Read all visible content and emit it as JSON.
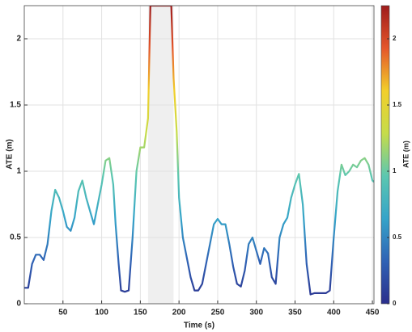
{
  "chart_data": {
    "type": "line",
    "xlabel": "Time (s)",
    "ylabel": "ATE (m)",
    "colorbar_label": "ATE (m)",
    "x": [
      0,
      5,
      10,
      15,
      20,
      25,
      30,
      35,
      40,
      45,
      50,
      55,
      60,
      65,
      70,
      75,
      80,
      85,
      90,
      95,
      100,
      105,
      110,
      115,
      118,
      122,
      125,
      130,
      135,
      140,
      145,
      150,
      155,
      160,
      163,
      190,
      193,
      197,
      200,
      205,
      210,
      215,
      220,
      225,
      230,
      235,
      240,
      245,
      250,
      255,
      260,
      265,
      270,
      275,
      280,
      285,
      290,
      295,
      300,
      305,
      310,
      315,
      320,
      325,
      330,
      335,
      340,
      345,
      350,
      355,
      360,
      365,
      370,
      375,
      380,
      385,
      390,
      395,
      400,
      405,
      410,
      415,
      420,
      425,
      430,
      435,
      440,
      445,
      450,
      452
    ],
    "series": [
      {
        "values": [
          0.12,
          0.12,
          0.3,
          0.37,
          0.37,
          0.33,
          0.45,
          0.7,
          0.86,
          0.8,
          0.7,
          0.58,
          0.55,
          0.65,
          0.85,
          0.93,
          0.8,
          0.7,
          0.6,
          0.75,
          0.9,
          1.08,
          1.1,
          0.9,
          0.6,
          0.3,
          0.1,
          0.09,
          0.1,
          0.5,
          1.0,
          1.18,
          1.18,
          1.4,
          2.25,
          2.25,
          1.7,
          1.3,
          0.8,
          0.5,
          0.35,
          0.2,
          0.1,
          0.1,
          0.15,
          0.3,
          0.45,
          0.6,
          0.64,
          0.6,
          0.6,
          0.45,
          0.28,
          0.15,
          0.13,
          0.25,
          0.45,
          0.5,
          0.4,
          0.3,
          0.42,
          0.38,
          0.2,
          0.15,
          0.5,
          0.6,
          0.65,
          0.8,
          0.9,
          0.98,
          0.75,
          0.3,
          0.07,
          0.08,
          0.08,
          0.08,
          0.08,
          0.1,
          0.5,
          0.85,
          1.05,
          0.97,
          1.0,
          1.05,
          1.03,
          1.08,
          1.1,
          1.05,
          0.93,
          0.92
        ]
      }
    ],
    "shaded_region": [
      160,
      193
    ],
    "shade_color": "#efefef",
    "colormap": [
      "#2b2f8c",
      "#2f62b5",
      "#35a4c9",
      "#5cc7b0",
      "#c6dc4a",
      "#f2cf2a",
      "#e5562a",
      "#9e1c1c"
    ],
    "xlim": [
      0,
      452
    ],
    "ylim": [
      0,
      2.25
    ],
    "xticks": [
      50,
      100,
      150,
      200,
      250,
      300,
      350,
      400,
      450
    ],
    "yticks": [
      0,
      0.5,
      1,
      1.5,
      2
    ],
    "clim": [
      0,
      2.25
    ],
    "cticks": [
      0,
      0.5,
      1,
      1.5,
      2
    ],
    "grid": true
  }
}
